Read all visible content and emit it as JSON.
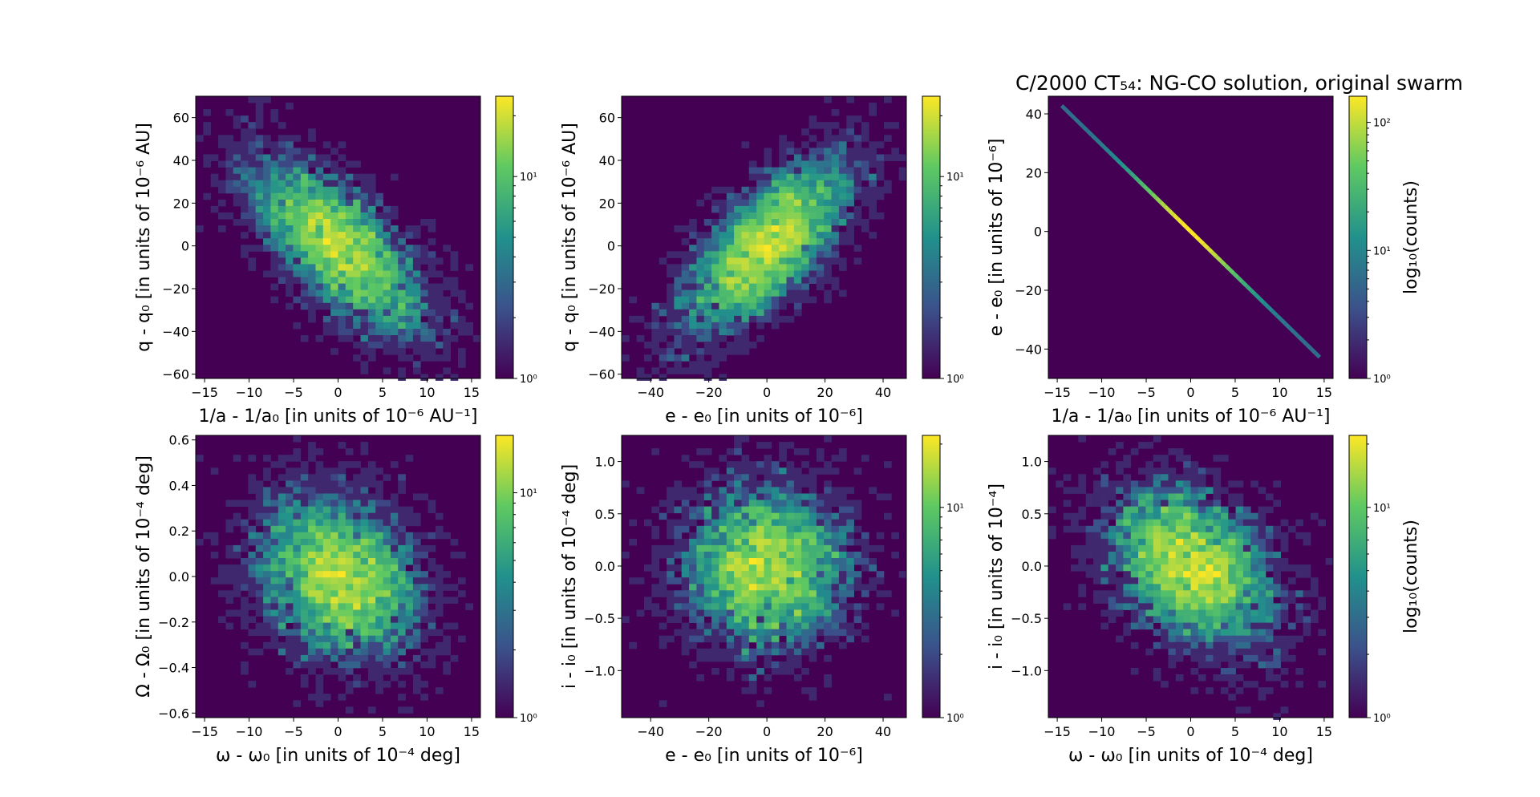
{
  "title": "C/2000 CT₅₄: NG-CO solution, original swarm",
  "colormap": [
    "#440154",
    "#3b528b",
    "#21918c",
    "#5ec962",
    "#fde725"
  ],
  "background_color": "#440154",
  "chart_data": [
    {
      "id": "p1",
      "type": "heatmap",
      "title": "",
      "xlabel": "1/a - 1/a₀ [in units of 10⁻⁶ AU⁻¹]",
      "ylabel": "q - q₀ [in units of 10⁻⁶ AU]",
      "xlim": [
        -16,
        16
      ],
      "ylim": [
        -62,
        70
      ],
      "xticks": [
        -15,
        -10,
        -5,
        0,
        5,
        10,
        15
      ],
      "yticks": [
        -60,
        -40,
        -20,
        0,
        20,
        40,
        60
      ],
      "distribution": {
        "mean": [
          0,
          0
        ],
        "std": [
          5.2,
          21
        ],
        "corr": -0.7,
        "n": 5000
      },
      "colorbar": {
        "label": "",
        "scale": "log",
        "range": [
          1,
          25
        ],
        "ticks": [
          {
            "value": 1,
            "label": "10⁰"
          },
          {
            "value": 10,
            "label": "10¹"
          }
        ]
      }
    },
    {
      "id": "p2",
      "type": "heatmap",
      "title": "",
      "xlabel": "e - e₀ [in units of 10⁻⁶]",
      "ylabel": "q - q₀ [in units of 10⁻⁶ AU]",
      "xlim": [
        -50,
        48
      ],
      "ylim": [
        -62,
        70
      ],
      "xticks": [
        -40,
        -20,
        0,
        20,
        40
      ],
      "yticks": [
        -60,
        -40,
        -20,
        0,
        20,
        40,
        60
      ],
      "distribution": {
        "mean": [
          0,
          0
        ],
        "std": [
          15,
          21
        ],
        "corr": 0.7,
        "n": 5000
      },
      "colorbar": {
        "label": "",
        "scale": "log",
        "range": [
          1,
          25
        ],
        "ticks": [
          {
            "value": 1,
            "label": "10⁰"
          },
          {
            "value": 10,
            "label": "10¹"
          }
        ]
      }
    },
    {
      "id": "p3",
      "type": "heatmap",
      "title": "",
      "xlabel": "1/a - 1/a₀ [in units of 10⁻⁶ AU⁻¹]",
      "ylabel": "e - e₀ [in units of 10⁻⁶]",
      "xlim": [
        -16,
        16
      ],
      "ylim": [
        -50,
        46
      ],
      "xticks": [
        -15,
        -10,
        -5,
        0,
        5,
        10,
        15
      ],
      "yticks": [
        -40,
        -20,
        0,
        20,
        40
      ],
      "line": {
        "x_range": [
          -14.5,
          14.5
        ],
        "slope": -2.95
      },
      "colorbar": {
        "label": "log₁₀(counts)",
        "scale": "log",
        "range": [
          1,
          160
        ],
        "ticks": [
          {
            "value": 1,
            "label": "10⁰"
          },
          {
            "value": 10,
            "label": "10¹"
          },
          {
            "value": 100,
            "label": "10²"
          }
        ]
      }
    },
    {
      "id": "p4",
      "type": "heatmap",
      "title": "",
      "xlabel": "ω - ω₀ [in units of 10⁻⁴ deg]",
      "ylabel": "Ω - Ω₀ [in units of 10⁻⁴ deg]",
      "xlim": [
        -16,
        16
      ],
      "ylim": [
        -0.62,
        0.62
      ],
      "xticks": [
        -15,
        -10,
        -5,
        0,
        5,
        10,
        15
      ],
      "yticks": [
        -0.6,
        -0.4,
        -0.2,
        0.0,
        0.2,
        0.4,
        0.6
      ],
      "distribution": {
        "mean": [
          0,
          0
        ],
        "std": [
          4.8,
          0.19
        ],
        "corr": -0.2,
        "n": 5000
      },
      "colorbar": {
        "label": "",
        "scale": "log",
        "range": [
          1,
          18
        ],
        "ticks": [
          {
            "value": 1,
            "label": "10⁰"
          },
          {
            "value": 10,
            "label": "10¹"
          }
        ]
      }
    },
    {
      "id": "p5",
      "type": "heatmap",
      "title": "",
      "xlabel": "e - e₀ [in units of 10⁻⁶]",
      "ylabel": "i - i₀ [in units of 10⁻⁴ deg]",
      "xlim": [
        -50,
        48
      ],
      "ylim": [
        -1.45,
        1.25
      ],
      "xticks": [
        -40,
        -20,
        0,
        20,
        40
      ],
      "yticks": [
        -1.0,
        -0.5,
        0.0,
        0.5,
        1.0
      ],
      "distribution": {
        "mean": [
          0,
          0
        ],
        "std": [
          15,
          0.4
        ],
        "corr": 0.0,
        "n": 5000
      },
      "colorbar": {
        "label": "",
        "scale": "log",
        "range": [
          1,
          22
        ],
        "ticks": [
          {
            "value": 1,
            "label": "10⁰"
          },
          {
            "value": 10,
            "label": "10¹"
          }
        ]
      }
    },
    {
      "id": "p6",
      "type": "heatmap",
      "title": "",
      "xlabel": "ω - ω₀ [in units of 10⁻⁴ deg]",
      "ylabel": "i - i₀ [in units of 10⁻⁴]",
      "xlim": [
        -16,
        16
      ],
      "ylim": [
        -1.45,
        1.25
      ],
      "xticks": [
        -15,
        -10,
        -5,
        0,
        5,
        10,
        15
      ],
      "yticks": [
        -1.0,
        -0.5,
        0.0,
        0.5,
        1.0
      ],
      "distribution": {
        "mean": [
          0,
          0
        ],
        "std": [
          4.8,
          0.4
        ],
        "corr": -0.35,
        "n": 5000
      },
      "colorbar": {
        "label": "log₁₀(counts)",
        "scale": "log",
        "range": [
          1,
          22
        ],
        "ticks": [
          {
            "value": 1,
            "label": "10⁰"
          },
          {
            "value": 10,
            "label": "10¹"
          }
        ]
      }
    }
  ]
}
